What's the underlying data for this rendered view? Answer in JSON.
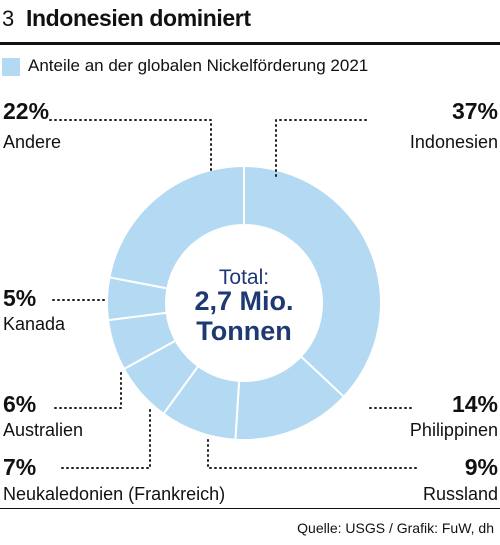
{
  "header": {
    "number": "3",
    "title": "Indonesien dominiert"
  },
  "legend": {
    "label": "Anteile an der globalen Nickelförderung 2021",
    "color": "#b3d9f3"
  },
  "chart_data": {
    "type": "pie",
    "subtype": "donut",
    "title": "Indonesien dominiert",
    "legend": "Anteile an der globalen Nickelförderung 2021",
    "center_label": {
      "line1": "Total:",
      "line2": "2,7 Mio.",
      "line3": "Tonnen"
    },
    "categories": [
      "Indonesien",
      "Philippinen",
      "Russland",
      "Neukaledonien (Frankreich)",
      "Australien",
      "Kanada",
      "Andere"
    ],
    "values": [
      37,
      14,
      9,
      7,
      6,
      5,
      22
    ],
    "labels": [
      "37%",
      "14%",
      "9%",
      "7%",
      "6%",
      "5%",
      "22%"
    ],
    "unit": "%",
    "slice_color": "#b3d9f3",
    "center_text_color": "#1f3a72"
  },
  "footer": {
    "source": "Quelle: USGS / Grafik: FuW, dh"
  }
}
